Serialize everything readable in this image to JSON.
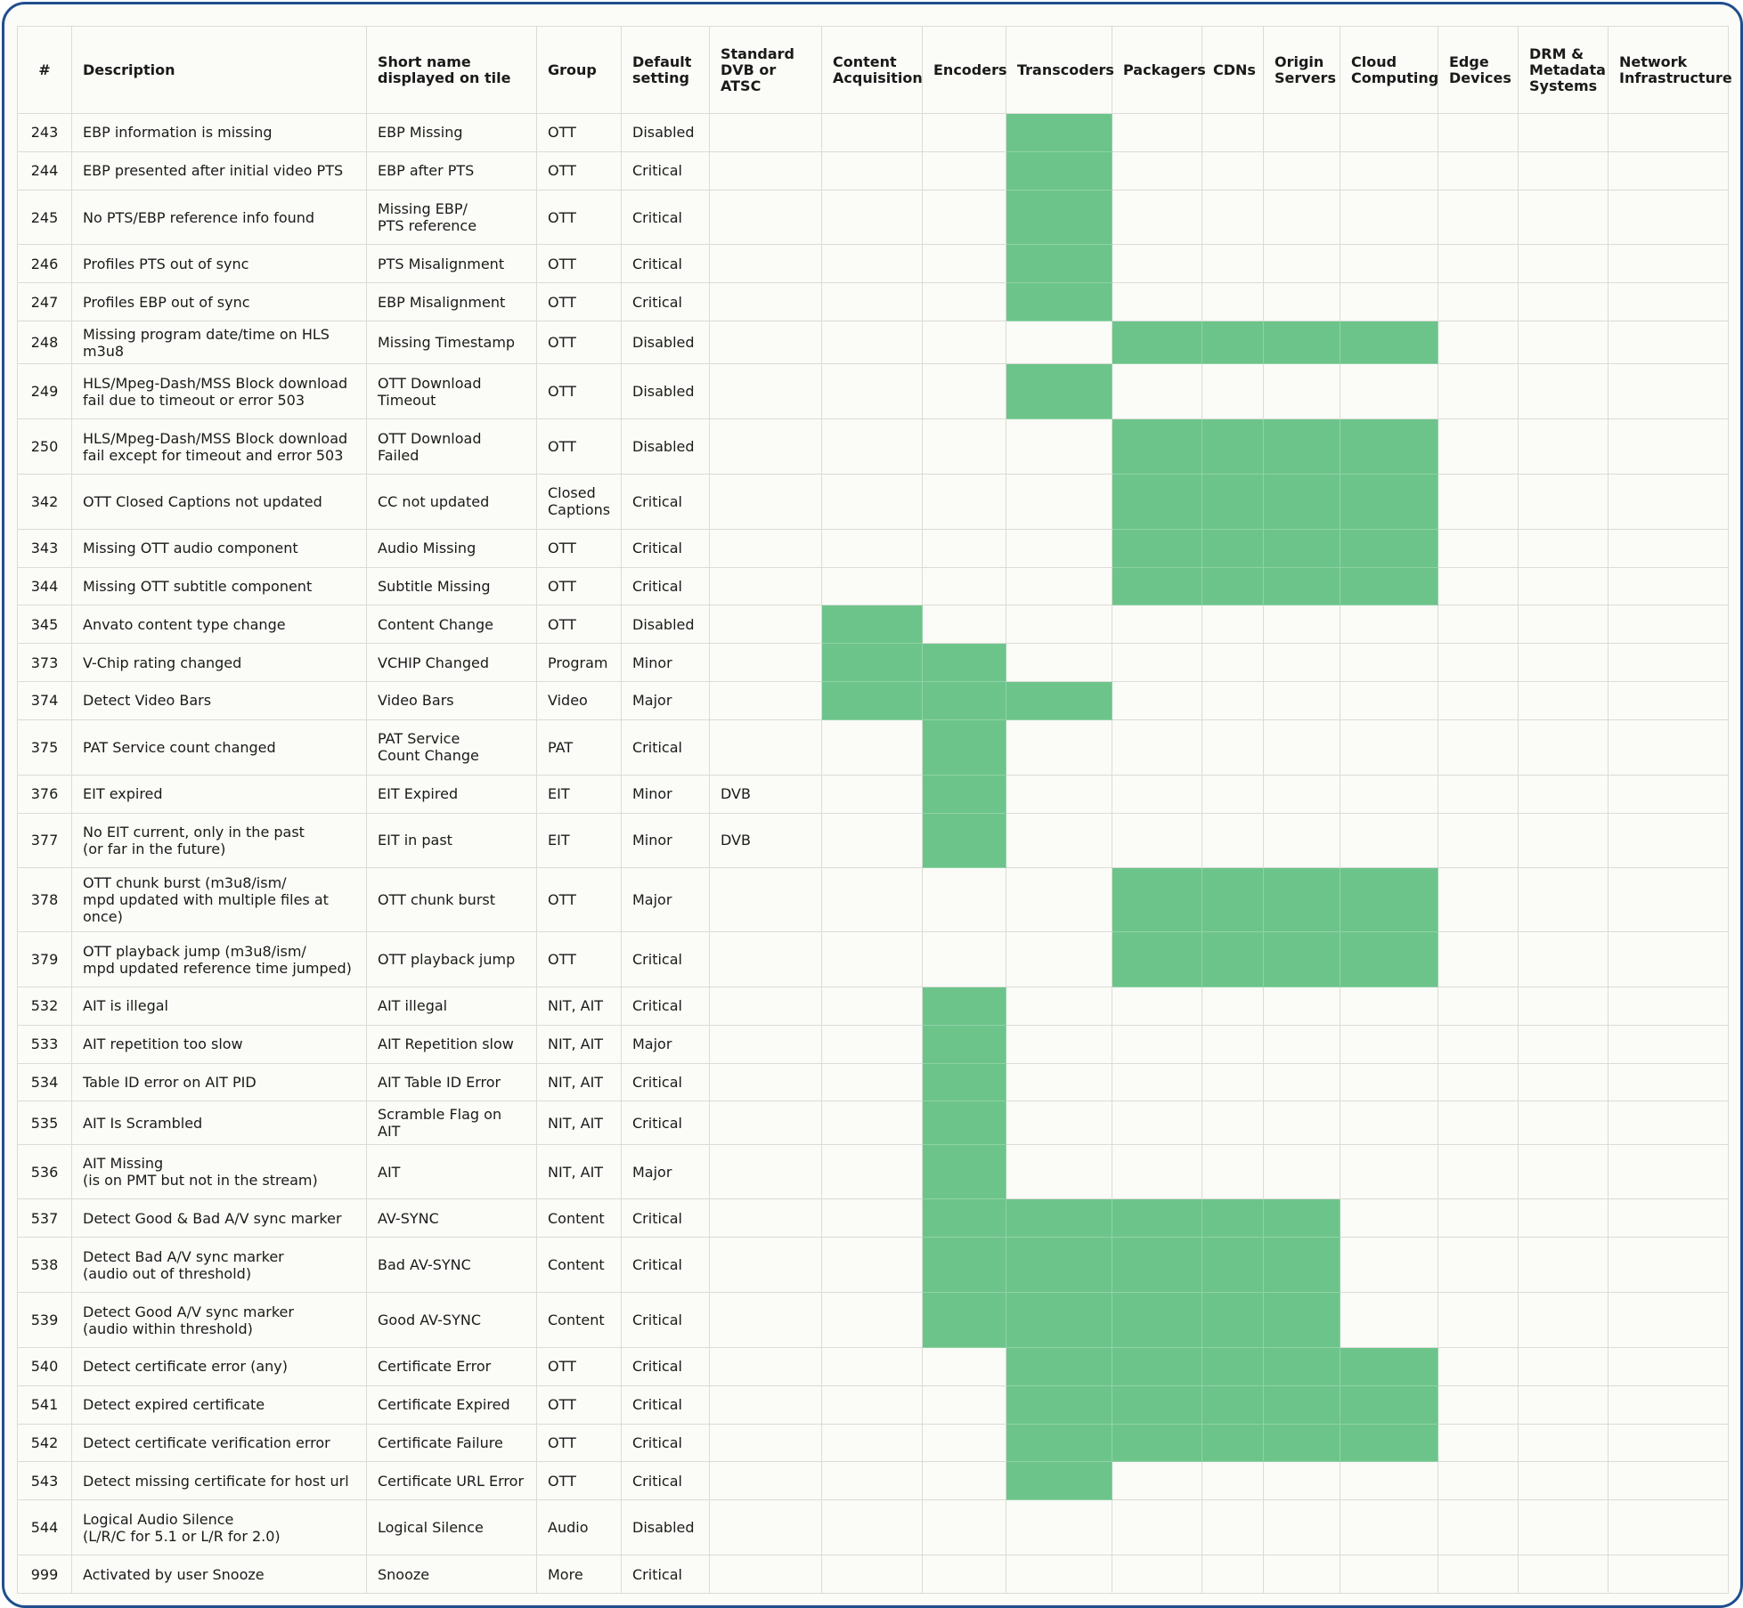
{
  "table": {
    "headers": [
      "#",
      "Description",
      "Short name\ndisplayed on tile",
      "Group",
      "Default\nsetting",
      "Standard\nDVB or\nATSC",
      "Content\nAcquisition",
      "Encoders",
      "Transcoders",
      "Packagers",
      "CDNs",
      "Origin\nServers",
      "Cloud\nComputing",
      "Edge\nDevices",
      "DRM &\nMetadata\nSystems",
      "Network\nInfrastructure"
    ],
    "rows": [
      {
        "id": "243",
        "description": "EBP information is missing",
        "short_name": "EBP Missing",
        "group": "OTT",
        "default_setting": "Disabled",
        "standard": "",
        "marks": [
          2
        ]
      },
      {
        "id": "244",
        "description": "EBP presented after initial video PTS",
        "short_name": "EBP after PTS",
        "group": "OTT",
        "default_setting": "Critical",
        "standard": "",
        "marks": [
          2
        ]
      },
      {
        "id": "245",
        "description": "No PTS/EBP reference info found",
        "short_name": "Missing EBP/\nPTS reference",
        "group": "OTT",
        "default_setting": "Critical",
        "standard": "",
        "marks": [
          2
        ]
      },
      {
        "id": "246",
        "description": "Profiles PTS out of sync",
        "short_name": "PTS Misalignment",
        "group": "OTT",
        "default_setting": "Critical",
        "standard": "",
        "marks": [
          2
        ]
      },
      {
        "id": "247",
        "description": "Profiles EBP out of sync",
        "short_name": "EBP Misalignment",
        "group": "OTT",
        "default_setting": "Critical",
        "standard": "",
        "marks": [
          2
        ]
      },
      {
        "id": "248",
        "description": "Missing program date/time on HLS m3u8",
        "short_name": "Missing Timestamp",
        "group": "OTT",
        "default_setting": "Disabled",
        "standard": "",
        "marks": [
          3,
          4,
          5,
          6
        ]
      },
      {
        "id": "249",
        "description": "HLS/Mpeg-Dash/MSS Block download\nfail due to timeout or error 503",
        "short_name": "OTT Download Timeout",
        "group": "OTT",
        "default_setting": "Disabled",
        "standard": "",
        "marks": [
          2
        ]
      },
      {
        "id": "250",
        "description": "HLS/Mpeg-Dash/MSS Block download\nfail except for timeout and error 503",
        "short_name": "OTT Download Failed",
        "group": "OTT",
        "default_setting": "Disabled",
        "standard": "",
        "marks": [
          3,
          4,
          5,
          6
        ]
      },
      {
        "id": "342",
        "description": "OTT Closed Captions not updated",
        "short_name": "CC not updated",
        "group": "Closed\nCaptions",
        "default_setting": "Critical",
        "standard": "",
        "marks": [
          3,
          4,
          5,
          6
        ]
      },
      {
        "id": "343",
        "description": "Missing OTT audio component",
        "short_name": "Audio Missing",
        "group": "OTT",
        "default_setting": "Critical",
        "standard": "",
        "marks": [
          3,
          4,
          5,
          6
        ]
      },
      {
        "id": "344",
        "description": "Missing OTT subtitle component",
        "short_name": "Subtitle Missing",
        "group": "OTT",
        "default_setting": "Critical",
        "standard": "",
        "marks": [
          3,
          4,
          5,
          6
        ]
      },
      {
        "id": "345",
        "description": "Anvato content type change",
        "short_name": "Content Change",
        "group": "OTT",
        "default_setting": "Disabled",
        "standard": "",
        "marks": [
          0
        ]
      },
      {
        "id": "373",
        "description": "V-Chip rating changed",
        "short_name": "VCHIP Changed",
        "group": "Program",
        "default_setting": "Minor",
        "standard": "",
        "marks": [
          0,
          1
        ]
      },
      {
        "id": "374",
        "description": "Detect Video Bars",
        "short_name": "Video Bars",
        "group": "Video",
        "default_setting": "Major",
        "standard": "",
        "marks": [
          0,
          1,
          2
        ]
      },
      {
        "id": "375",
        "description": "PAT Service count changed",
        "short_name": "PAT Service\nCount Change",
        "group": "PAT",
        "default_setting": "Critical",
        "standard": "",
        "marks": [
          1
        ]
      },
      {
        "id": "376",
        "description": "EIT expired",
        "short_name": "EIT Expired",
        "group": "EIT",
        "default_setting": "Minor",
        "standard": "DVB",
        "marks": [
          1
        ]
      },
      {
        "id": "377",
        "description": "No EIT current, only in the past\n(or far in the future)",
        "short_name": "EIT in past",
        "group": "EIT",
        "default_setting": "Minor",
        "standard": "DVB",
        "marks": [
          1
        ]
      },
      {
        "id": "378",
        "description": "OTT chunk burst (m3u8/ism/\nmpd updated with multiple files at once)",
        "short_name": "OTT chunk burst",
        "group": "OTT",
        "default_setting": "Major",
        "standard": "",
        "marks": [
          3,
          4,
          5,
          6
        ]
      },
      {
        "id": "379",
        "description": "OTT playback jump (m3u8/ism/\nmpd updated reference time jumped)",
        "short_name": "OTT playback jump",
        "group": "OTT",
        "default_setting": "Critical",
        "standard": "",
        "marks": [
          3,
          4,
          5,
          6
        ]
      },
      {
        "id": "532",
        "description": "AIT is illegal",
        "short_name": "AIT illegal",
        "group": "NIT, AIT",
        "default_setting": "Critical",
        "standard": "",
        "marks": [
          1
        ]
      },
      {
        "id": "533",
        "description": "AIT repetition too slow",
        "short_name": "AIT Repetition slow",
        "group": "NIT, AIT",
        "default_setting": "Major",
        "standard": "",
        "marks": [
          1
        ]
      },
      {
        "id": "534",
        "description": "Table ID error on AIT PID",
        "short_name": "AIT Table ID Error",
        "group": "NIT, AIT",
        "default_setting": "Critical",
        "standard": "",
        "marks": [
          1
        ]
      },
      {
        "id": "535",
        "description": "AIT Is Scrambled",
        "short_name": "Scramble Flag on AIT",
        "group": "NIT, AIT",
        "default_setting": "Critical",
        "standard": "",
        "marks": [
          1
        ]
      },
      {
        "id": "536",
        "description": "AIT Missing\n(is on PMT but not in the stream)",
        "short_name": "AIT",
        "group": "NIT, AIT",
        "default_setting": "Major",
        "standard": "",
        "marks": [
          1
        ]
      },
      {
        "id": "537",
        "description": "Detect Good & Bad A/V sync marker",
        "short_name": "AV-SYNC",
        "group": "Content",
        "default_setting": "Critical",
        "standard": "",
        "marks": [
          1,
          2,
          3,
          4,
          5
        ]
      },
      {
        "id": "538",
        "description": "Detect Bad A/V sync marker\n(audio out of threshold)",
        "short_name": "Bad AV-SYNC",
        "group": "Content",
        "default_setting": "Critical",
        "standard": "",
        "marks": [
          1,
          2,
          3,
          4,
          5
        ]
      },
      {
        "id": "539",
        "description": "Detect Good A/V sync marker\n(audio within threshold)",
        "short_name": "Good AV-SYNC",
        "group": "Content",
        "default_setting": "Critical",
        "standard": "",
        "marks": [
          1,
          2,
          3,
          4,
          5
        ]
      },
      {
        "id": "540",
        "description": "Detect certificate error (any)",
        "short_name": "Certificate Error",
        "group": "OTT",
        "default_setting": "Critical",
        "standard": "",
        "marks": [
          2,
          3,
          4,
          5,
          6
        ]
      },
      {
        "id": "541",
        "description": "Detect expired certificate",
        "short_name": "Certificate Expired",
        "group": "OTT",
        "default_setting": "Critical",
        "standard": "",
        "marks": [
          2,
          3,
          4,
          5,
          6
        ]
      },
      {
        "id": "542",
        "description": "Detect certificate verification error",
        "short_name": "Certificate Failure",
        "group": "OTT",
        "default_setting": "Critical",
        "standard": "",
        "marks": [
          2,
          3,
          4,
          5,
          6
        ]
      },
      {
        "id": "543",
        "description": "Detect missing certificate for host url",
        "short_name": "Certificate URL Error",
        "group": "OTT",
        "default_setting": "Critical",
        "standard": "",
        "marks": [
          2
        ]
      },
      {
        "id": "544",
        "description": "Logical Audio Silence\n(L/R/C for 5.1 or L/R for 2.0)",
        "short_name": "Logical Silence",
        "group": "Audio",
        "default_setting": "Disabled",
        "standard": "",
        "marks": []
      },
      {
        "id": "999",
        "description": "Activated by user Snooze",
        "short_name": "Snooze",
        "group": "More",
        "default_setting": "Critical",
        "standard": "",
        "marks": []
      }
    ]
  },
  "colors": {
    "mark": "#6dc48b",
    "frame": "#1f4e8c"
  }
}
